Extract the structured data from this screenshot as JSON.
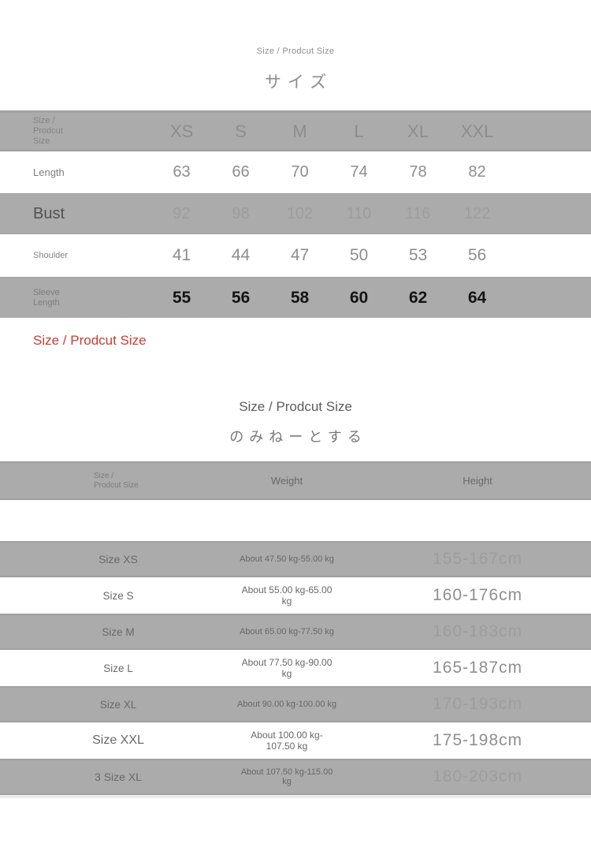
{
  "colors": {
    "row_gray": "#ababab",
    "accent_red": "#cc3b33",
    "text_gray": "#8d8d8d",
    "bold_black": "#141414"
  },
  "header": {
    "eyebrow": "Size / Prodcut Size",
    "title_jp": "サイズ"
  },
  "size_table": {
    "corner_label": "Size / Prodcut Size",
    "columns": [
      "XS",
      "S",
      "M",
      "L",
      "XL",
      "XXL"
    ],
    "rows": [
      {
        "label": "Length",
        "values": [
          "63",
          "66",
          "70",
          "74",
          "78",
          "82"
        ]
      },
      {
        "label": "Bust",
        "values": [
          "92",
          "98",
          "102",
          "110",
          "116",
          "122"
        ]
      },
      {
        "label": "Shoulder",
        "values": [
          "41",
          "44",
          "47",
          "50",
          "53",
          "56"
        ]
      },
      {
        "label": "Sleeve Length",
        "values": [
          "55",
          "56",
          "58",
          "60",
          "62",
          "64"
        ]
      }
    ]
  },
  "note": {
    "text": "Size / Prodcut Size"
  },
  "fit_section": {
    "title": "Size / Prodcut Size",
    "subtitle_jp": "のみねーとする"
  },
  "fit_table": {
    "corner_label": "Size / Prodcut Size",
    "weight_header": "Weight",
    "height_header": "Height",
    "rows": [
      {
        "size": "Size XS",
        "weight": "About 47.50 kg-55.00 kg",
        "height": "155-167cm"
      },
      {
        "size": "Size S",
        "weight": "About 55.00 kg-65.00 kg",
        "height": "160-176cm"
      },
      {
        "size": "Size M",
        "weight": "About 65.00 kg-77.50 kg",
        "height": "160-183cm"
      },
      {
        "size": "Size L",
        "weight": "About 77.50 kg-90.00 kg",
        "height": "165-187cm"
      },
      {
        "size": "Size XL",
        "weight": "About 90.00 kg-100.00 kg",
        "height": "170-193cm"
      },
      {
        "size": "Size XXL",
        "weight": "About 100.00 kg-107.50 kg",
        "height": "175-198cm"
      },
      {
        "size": "3 Size XL",
        "weight": "About 107.50 kg-115.00 kg",
        "height": "180-203cm"
      }
    ]
  }
}
